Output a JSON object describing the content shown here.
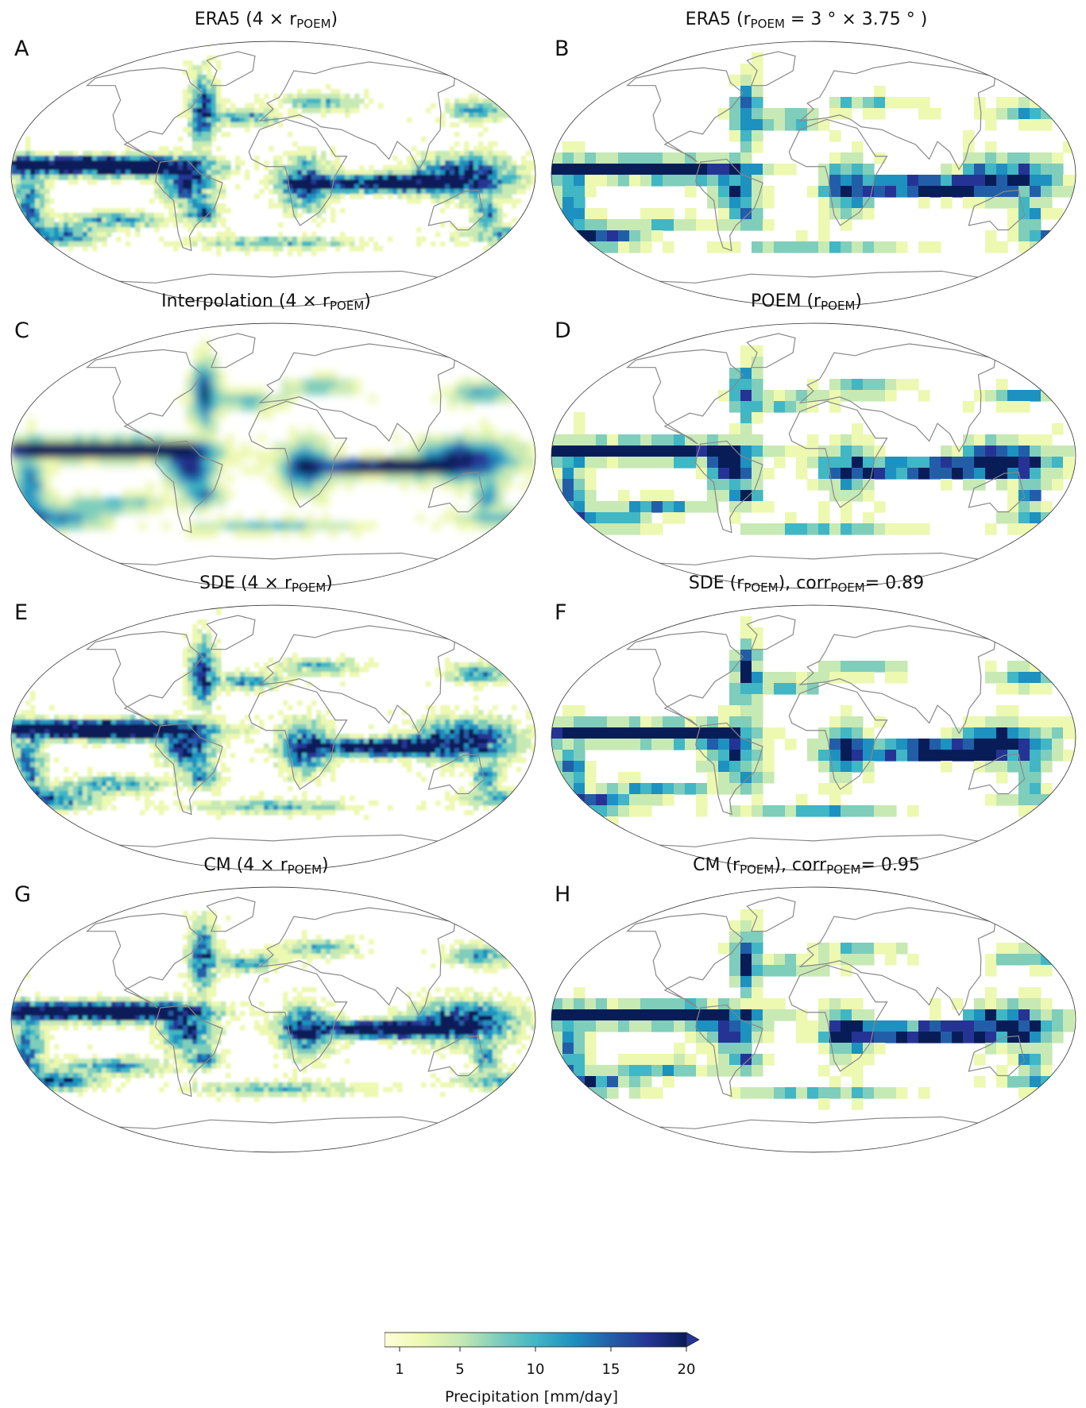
{
  "panels": [
    {
      "letter": "A",
      "title_main": "ERA5 (4 × r",
      "title_sub": "POEM",
      "title_tail": ")",
      "style": "fine",
      "seed": 11
    },
    {
      "letter": "B",
      "title_main": "ERA5 (r",
      "title_sub": "POEM",
      "title_tail": " = 3 ° × 3.75 ° )",
      "style": "coarse",
      "seed": 12
    },
    {
      "letter": "C",
      "title_main": "Interpolation (4 × r",
      "title_sub": "POEM",
      "title_tail": ")",
      "style": "smooth",
      "seed": 13
    },
    {
      "letter": "D",
      "title_main": "POEM (r",
      "title_sub": "POEM",
      "title_tail": ")",
      "style": "coarse",
      "seed": 14
    },
    {
      "letter": "E",
      "title_main": "SDE (4 × r",
      "title_sub": "POEM",
      "title_tail": ")",
      "style": "fine",
      "seed": 15
    },
    {
      "letter": "F",
      "title_main": "SDE (r",
      "title_sub": "POEM",
      "title_tail": "), corr",
      "title_sub2": "POEM",
      "title_tail2": "= 0.89",
      "style": "coarse",
      "seed": 16
    },
    {
      "letter": "G",
      "title_main": "CM (4 × r",
      "title_sub": "POEM",
      "title_tail": ")",
      "style": "fine",
      "seed": 17
    },
    {
      "letter": "H",
      "title_main": "CM (r",
      "title_sub": "POEM",
      "title_tail": "), corr",
      "title_sub2": "POEM",
      "title_tail2": "= 0.95",
      "style": "coarse",
      "seed": 18
    }
  ],
  "colorbar": {
    "label": "Precipitation [mm/day]",
    "min": 0,
    "max": 20,
    "ticks": [
      {
        "value": 1,
        "label": "1"
      },
      {
        "value": 5,
        "label": "5"
      },
      {
        "value": 10,
        "label": "10"
      },
      {
        "value": 15,
        "label": "15"
      },
      {
        "value": 20,
        "label": "20"
      }
    ],
    "extend": "max",
    "colormap": [
      "#ffffd9",
      "#edf8b1",
      "#c7e9b4",
      "#7fcdbb",
      "#41b6c4",
      "#1d91c0",
      "#225ea8",
      "#253494",
      "#081d58"
    ]
  },
  "coastline_color": "#888888",
  "frame_color": "#333333"
}
